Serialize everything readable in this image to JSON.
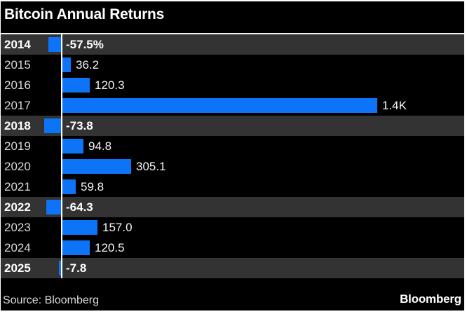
{
  "title": "Bitcoin Annual Returns",
  "source": "Source: Bloomberg",
  "brand": "Bloomberg",
  "colors": {
    "background": "#000000",
    "frame": "#ffffff",
    "bar": "#0d73f7",
    "highlight_row": "#333333",
    "axis": "#ffffff"
  },
  "chart_data": {
    "type": "bar",
    "orientation": "horizontal",
    "title": "Bitcoin Annual Returns",
    "unit": "percent",
    "xlim": [
      -100,
      1450
    ],
    "baseline": 0,
    "legend": "none",
    "grid": "off",
    "categories": [
      "2014",
      "2015",
      "2016",
      "2017",
      "2018",
      "2019",
      "2020",
      "2021",
      "2022",
      "2023",
      "2024",
      "2025"
    ],
    "rows": [
      {
        "year": "2014",
        "value": -57.5,
        "label": "-57.5%",
        "highlighted": true
      },
      {
        "year": "2015",
        "value": 36.2,
        "label": "36.2",
        "highlighted": false
      },
      {
        "year": "2016",
        "value": 120.3,
        "label": "120.3",
        "highlighted": false
      },
      {
        "year": "2017",
        "value": 1400,
        "label": "1.4K",
        "highlighted": false
      },
      {
        "year": "2018",
        "value": -73.8,
        "label": "-73.8",
        "highlighted": true
      },
      {
        "year": "2019",
        "value": 94.8,
        "label": "94.8",
        "highlighted": false
      },
      {
        "year": "2020",
        "value": 305.1,
        "label": "305.1",
        "highlighted": false
      },
      {
        "year": "2021",
        "value": 59.8,
        "label": "59.8",
        "highlighted": false
      },
      {
        "year": "2022",
        "value": -64.3,
        "label": "-64.3",
        "highlighted": true
      },
      {
        "year": "2023",
        "value": 157.0,
        "label": "157.0",
        "highlighted": false
      },
      {
        "year": "2024",
        "value": 120.5,
        "label": "120.5",
        "highlighted": false
      },
      {
        "year": "2025",
        "value": -7.8,
        "label": "-7.8",
        "highlighted": true
      }
    ]
  }
}
